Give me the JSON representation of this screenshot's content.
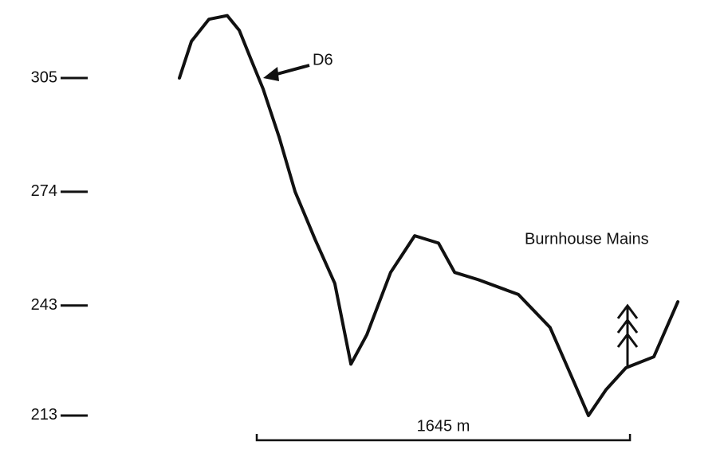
{
  "chart_data": {
    "type": "line",
    "x": [
      0,
      53,
      130,
      211,
      264,
      316,
      369,
      439,
      510,
      598,
      685,
      756,
      826,
      931,
      1037,
      1142,
      1213,
      1318,
      1494,
      1634,
      1740,
      1803,
      1880,
      1968,
      2091,
      2197
    ],
    "series": [
      {
        "color": "#111111",
        "values": [
          305,
          315,
          321,
          322,
          318,
          310,
          302,
          289,
          274,
          261,
          249,
          227,
          235,
          252,
          262,
          260,
          252,
          250,
          246,
          237,
          222,
          213,
          220,
          226,
          229,
          244
        ]
      }
    ],
    "xlim": [
      0,
      2200
    ],
    "ylim": [
      208,
      326
    ],
    "yticks": [
      213,
      243,
      274,
      305
    ],
    "annotations": [
      {
        "text": "D6"
      },
      {
        "text": "Burnhouse Mains"
      }
    ],
    "scale_bar": {
      "label": "1645 m",
      "value": 1645
    }
  }
}
